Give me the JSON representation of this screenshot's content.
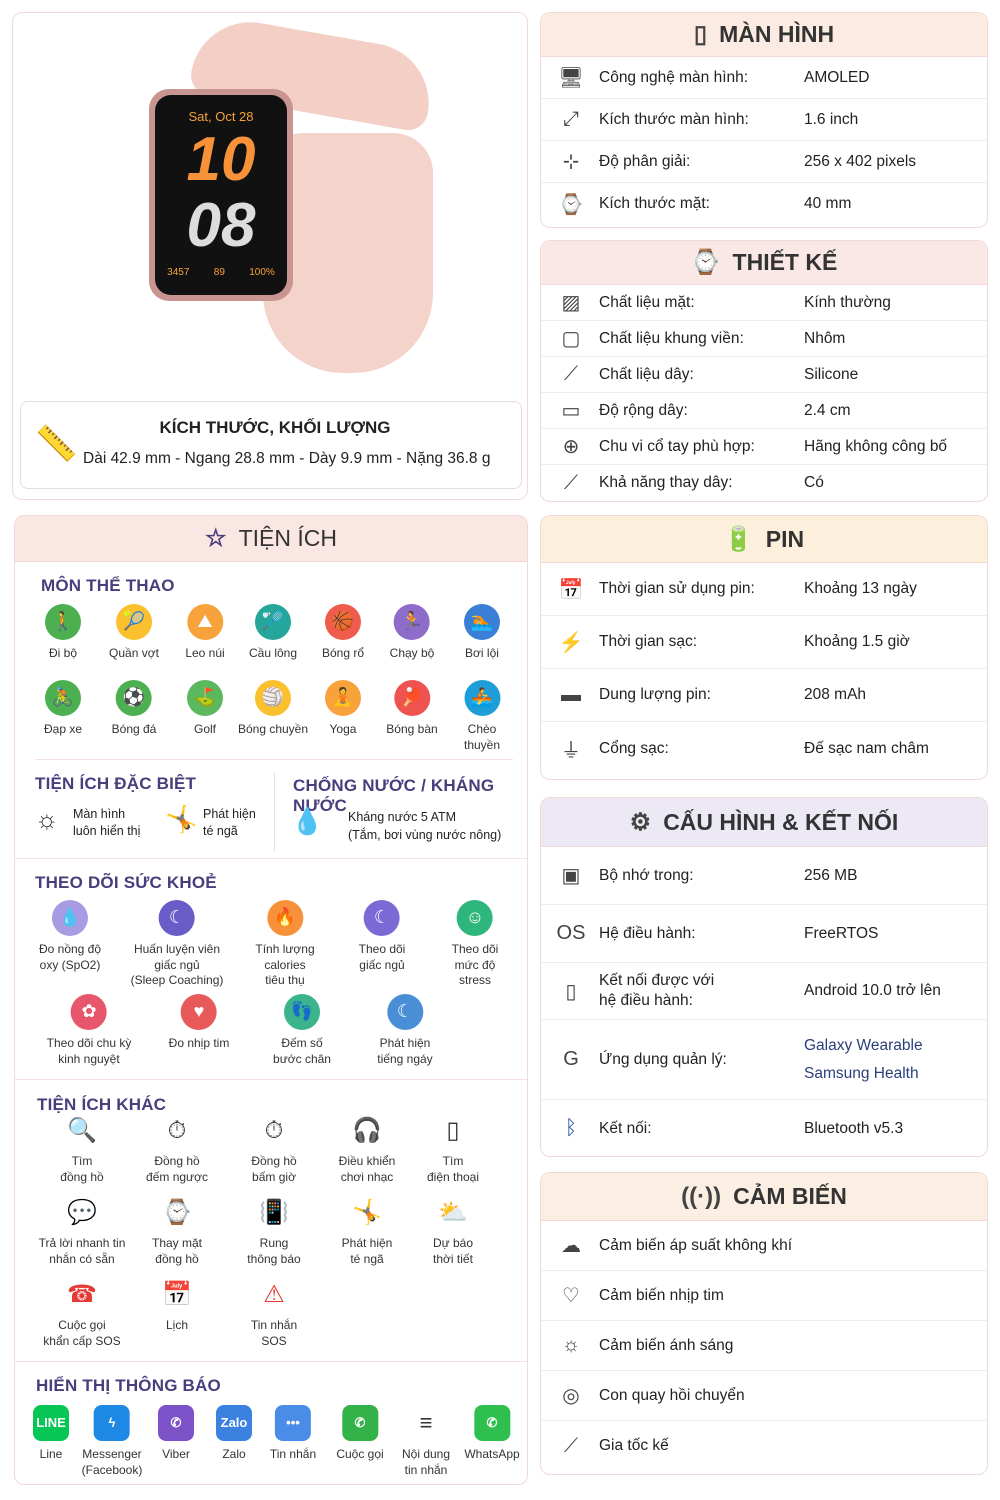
{
  "watch": {
    "date": "Sat, Oct 28",
    "hour": "10",
    "minute": "08",
    "steps": "3457",
    "heart": "89",
    "battery": "100%"
  },
  "dimensions": {
    "title": "KÍCH THƯỚC, KHỐI LƯỢNG",
    "value": "Dài 42.9 mm - Ngang 28.8 mm - Dày 9.9 mm - Nặng 36.8 g",
    "icon": "ruler-icon"
  },
  "utilities": {
    "title": "TIỆN ÍCH",
    "icon": "star-icon",
    "sports": {
      "title": "MÔN THỂ THAO",
      "items": [
        {
          "label": "Đi bộ",
          "color": "#4caf50",
          "glyph": "🚶"
        },
        {
          "label": "Quần vợt",
          "color": "#fbc02d",
          "glyph": "🎾"
        },
        {
          "label": "Leo núi",
          "color": "#f7a23a",
          "glyph": "⛰"
        },
        {
          "label": "Cầu lông",
          "color": "#26a69a",
          "glyph": "🏸"
        },
        {
          "label": "Bóng rổ",
          "color": "#ef5b4c",
          "glyph": "🏀"
        },
        {
          "label": "Chạy bộ",
          "color": "#8e6cc9",
          "glyph": "🏃"
        },
        {
          "label": "Bơi lội",
          "color": "#3a7fd5",
          "glyph": "🏊"
        },
        {
          "label": "Đạp xe",
          "color": "#4caf50",
          "glyph": "🚴"
        },
        {
          "label": "Bóng đá",
          "color": "#4caf50",
          "glyph": "⚽"
        },
        {
          "label": "Golf",
          "color": "#5cb85c",
          "glyph": "⛳"
        },
        {
          "label": "Bóng chuyền",
          "color": "#fbc02d",
          "glyph": "🏐"
        },
        {
          "label": "Yoga",
          "color": "#f7a23a",
          "glyph": "🧘"
        },
        {
          "label": "Bóng bàn",
          "color": "#ef5350",
          "glyph": "🏓"
        },
        {
          "label": "Chèo thuyền",
          "color": "#1e9ed8",
          "glyph": "🚣"
        }
      ]
    },
    "special": {
      "title": "TIỆN ÍCH ĐẶC BIỆT",
      "items": [
        {
          "label": "Màn hình\nluôn hiển thị",
          "icon": "sun-icon",
          "glyph": "☼"
        },
        {
          "label": "Phát hiện\nté ngã",
          "icon": "fall-icon",
          "glyph": "🤸"
        }
      ]
    },
    "water": {
      "title": "CHỐNG NƯỚC / KHÁNG NƯỚC",
      "label": "Kháng nước 5 ATM\n(Tắm, bơi vùng nước nông)",
      "icon": "water-drop-icon"
    },
    "health": {
      "title": "THEO DÕI SỨC KHOẺ",
      "items": [
        {
          "label": "Đo nồng độ\noxy (SpO2)",
          "color": "#a99be3",
          "glyph": "💧"
        },
        {
          "label": "Huấn luyện viên\ngiấc ngủ\n(Sleep Coaching)",
          "color": "#6a5cc7",
          "glyph": "☾"
        },
        {
          "label": "Tính lượng\ncalories\ntiêu thụ",
          "color": "#f7923a",
          "glyph": "🔥"
        },
        {
          "label": "Theo dõi\ngiấc ngủ",
          "color": "#7b6ad6",
          "glyph": "☾"
        },
        {
          "label": "Theo dõi\nmức độ\nstress",
          "color": "#2fb67c",
          "glyph": "☺"
        },
        {
          "label": "Theo dõi chu kỳ\nkinh nguyệt",
          "color": "#e8566e",
          "glyph": "✿"
        },
        {
          "label": "Đo nhịp tim",
          "color": "#e85a5a",
          "glyph": "♥"
        },
        {
          "label": "Đếm số\nbước chân",
          "color": "#3bb48e",
          "glyph": "👣"
        },
        {
          "label": "Phát hiện\ntiếng ngáy",
          "color": "#4a8fd6",
          "glyph": "☾"
        }
      ]
    },
    "others": {
      "title": "TIỆN ÍCH KHÁC",
      "items": [
        {
          "label": "Tìm\nđồng hồ",
          "glyph": "🔍",
          "icon": "search-icon"
        },
        {
          "label": "Đồng hồ\nđếm ngược",
          "glyph": "⏱",
          "icon": "timer-icon"
        },
        {
          "label": "Đồng hồ\nbấm giờ",
          "glyph": "⏱",
          "icon": "stopwatch-icon"
        },
        {
          "label": "Điều khiển\nchơi nhạc",
          "glyph": "🎧",
          "icon": "headphones-icon"
        },
        {
          "label": "Tìm\nđiện thoại",
          "glyph": "▯",
          "icon": "phone-icon"
        },
        {
          "label": "Trả lời nhanh tin\nnhắn có sẵn",
          "glyph": "💬",
          "icon": "chat-icon"
        },
        {
          "label": "Thay mặt\nđồng hồ",
          "glyph": "⌚",
          "icon": "watch-icon"
        },
        {
          "label": "Rung\nthông báo",
          "glyph": "📳",
          "icon": "vibrate-icon"
        },
        {
          "label": "Phát hiện\nté ngã",
          "glyph": "🤸",
          "icon": "fall-icon"
        },
        {
          "label": "Dự báo\nthời tiết",
          "glyph": "⛅",
          "icon": "weather-icon"
        },
        {
          "label": "Cuộc gọi\nkhẩn cấp SOS",
          "glyph": "☎",
          "icon": "sos-call-icon",
          "color": "#e53935"
        },
        {
          "label": "Lịch",
          "glyph": "📅",
          "icon": "calendar-icon"
        },
        {
          "label": "Tin nhắn\nSOS",
          "glyph": "⚠",
          "icon": "sos-message-icon",
          "color": "#e53935"
        }
      ]
    },
    "notifications": {
      "title": "HIỂN THỊ THÔNG BÁO",
      "items": [
        {
          "label": "Line",
          "color": "#06c755",
          "glyph": "LINE"
        },
        {
          "label": "Messenger\n(Facebook)",
          "color": "#1e88e5",
          "glyph": "ϟ"
        },
        {
          "label": "Viber",
          "color": "#7d52c8",
          "glyph": "✆"
        },
        {
          "label": "Zalo",
          "color": "#3b82e0",
          "glyph": "Zalo"
        },
        {
          "label": "Tin nhắn",
          "color": "#4a8de8",
          "glyph": "•••"
        },
        {
          "label": "Cuộc gọi",
          "color": "#34b24a",
          "glyph": "✆"
        },
        {
          "label": "Nội dung\ntin nhắn",
          "color": "#ffffff",
          "glyph": "≡"
        },
        {
          "label": "WhatsApp",
          "color": "#2fbf4e",
          "glyph": "✆"
        }
      ]
    }
  },
  "specs": {
    "display": {
      "title": "MÀN HÌNH",
      "bg": "#fbebe3",
      "rows": [
        {
          "label": "Công nghệ màn hình:",
          "value": "AMOLED",
          "glyph": "🖥"
        },
        {
          "label": "Kích thước màn hình:",
          "value": "1.6 inch",
          "glyph": "⤢"
        },
        {
          "label": "Độ phân giải:",
          "value": "256 x 402 pixels",
          "glyph": "⊹"
        },
        {
          "label": "Kích thước mặt:",
          "value": "40 mm",
          "glyph": "⌚"
        }
      ]
    },
    "design": {
      "title": "THIẾT KẾ",
      "bg": "#f9e8e6",
      "rows": [
        {
          "label": "Chất liệu mặt:",
          "value": "Kính thường",
          "glyph": "▨"
        },
        {
          "label": "Chất liệu khung viền:",
          "value": "Nhôm",
          "glyph": "▢"
        },
        {
          "label": "Chất liệu dây:",
          "value": "Silicone",
          "glyph": "⟋"
        },
        {
          "label": "Độ rộng dây:",
          "value": "2.4 cm",
          "glyph": "▭"
        },
        {
          "label": "Chu vi cổ tay phù hợp:",
          "value": "Hãng không công bố",
          "glyph": "⊕"
        },
        {
          "label": "Khả năng thay dây:",
          "value": "Có",
          "glyph": "⟋"
        }
      ]
    },
    "battery": {
      "title": "PIN",
      "bg": "#fcf0dd",
      "rows": [
        {
          "label": "Thời gian sử dụng pin:",
          "value": "Khoảng 13 ngày",
          "glyph": "📅"
        },
        {
          "label": "Thời gian sạc:",
          "value": "Khoảng 1.5 giờ",
          "glyph": "⚡"
        },
        {
          "label": "Dung lượng pin:",
          "value": "208 mAh",
          "glyph": "▬"
        },
        {
          "label": "Cổng sạc:",
          "value": "Đế sạc nam châm",
          "glyph": "⏚"
        }
      ]
    },
    "config": {
      "title": "CẤU HÌNH & KẾT NỐI",
      "bg": "#ece9f5",
      "rows": [
        {
          "label": "Bộ nhớ trong:",
          "value": "256 MB",
          "glyph": "▣"
        },
        {
          "label": "Hệ điều hành:",
          "value": "FreeRTOS",
          "glyph": "OS"
        },
        {
          "label": "Kết nối được với\nhệ điều hành:",
          "value": "Android 10.0 trở lên",
          "glyph": "▯"
        },
        {
          "label": "Ứng dụng quản lý:",
          "value": "Galaxy Wearable",
          "value2": "Samsung Health",
          "glyph": "G"
        },
        {
          "label": "Kết nối:",
          "value": "Bluetooth v5.3",
          "glyph": "ᛒ"
        }
      ]
    },
    "sensors": {
      "title": "CẢM BIẾN",
      "bg": "#fbeee3",
      "rows": [
        {
          "label": "Cảm biến áp suất không khí",
          "glyph": "☁"
        },
        {
          "label": "Cảm biến nhịp tim",
          "glyph": "♡"
        },
        {
          "label": "Cảm biến ánh sáng",
          "glyph": "☼"
        },
        {
          "label": "Con quay hồi chuyển",
          "glyph": "◎"
        },
        {
          "label": "Gia tốc kế",
          "glyph": "⟋"
        }
      ]
    }
  }
}
